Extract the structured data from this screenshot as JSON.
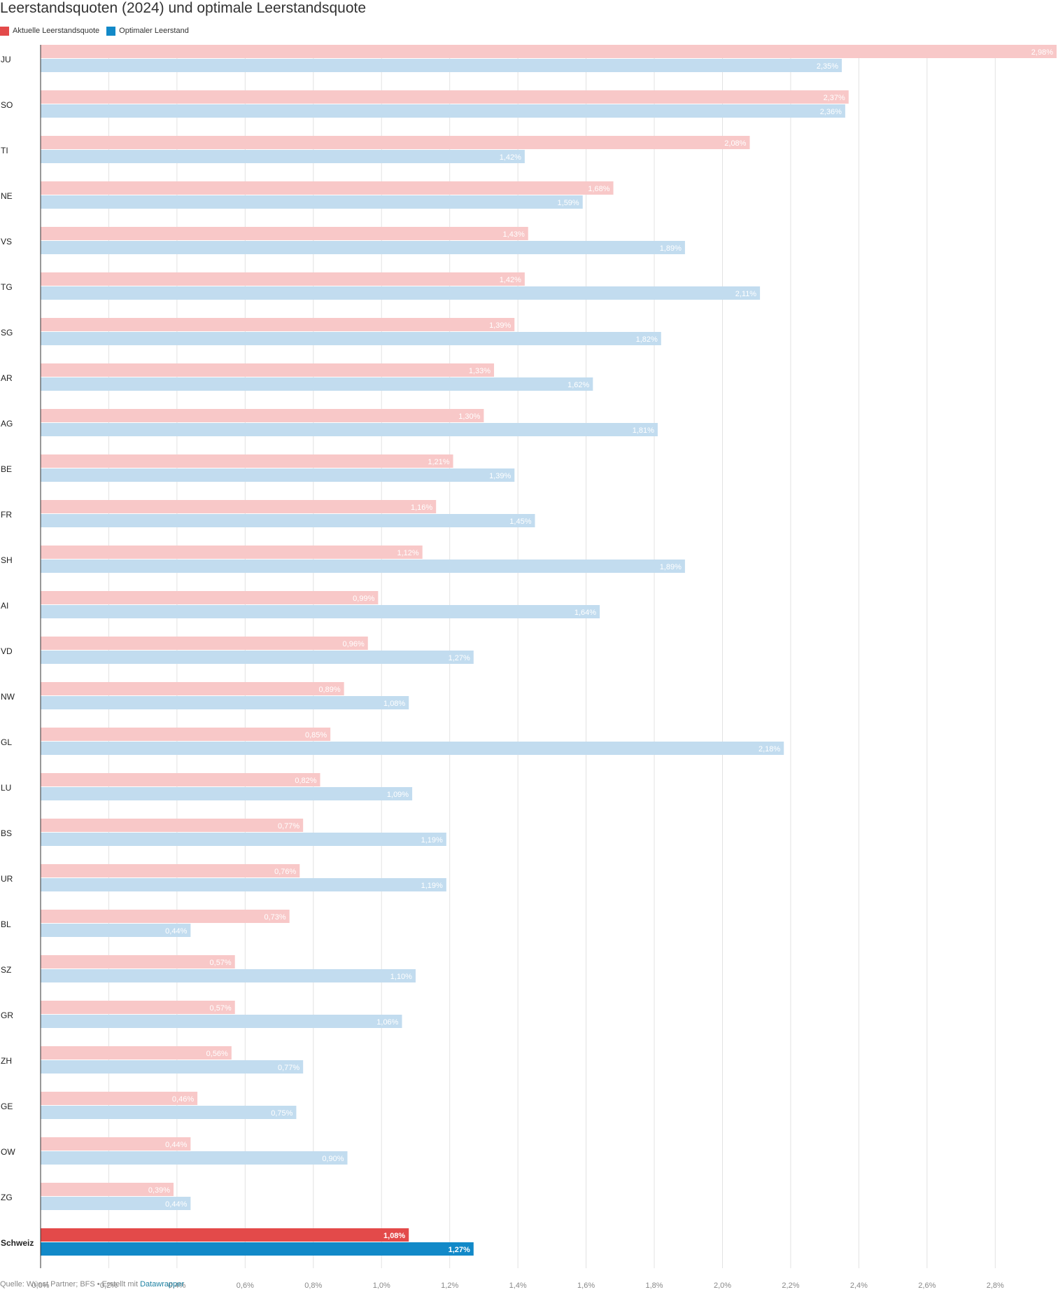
{
  "title": "Leerstandsquoten (2024) und optimale Leerstandsquote",
  "legend": [
    {
      "label": "Aktuelle Leerstandsquote",
      "color": "#e34a4a"
    },
    {
      "label": "Optimaler Leerstand",
      "color": "#1289c8"
    }
  ],
  "footer": {
    "source": "Quelle: Wüest Partner; BFS • Erstellt mit ",
    "link": "Datawrapper"
  },
  "chart_data": {
    "type": "bar",
    "orientation": "horizontal",
    "value_format": "percent, comma decimal",
    "xlim": [
      0,
      2.98
    ],
    "x_ticks": [
      "0,0%",
      "0,2%",
      "0,4%",
      "0,6%",
      "0,8%",
      "1,0%",
      "1,2%",
      "1,4%",
      "1,6%",
      "1,8%",
      "2,0%",
      "2,2%",
      "2,4%",
      "2,6%",
      "2,8%"
    ],
    "x_tick_values": [
      0,
      0.2,
      0.4,
      0.6,
      0.8,
      1.0,
      1.2,
      1.4,
      1.6,
      1.8,
      2.0,
      2.2,
      2.4,
      2.6,
      2.8
    ],
    "grid": true,
    "legend_position": "top-left",
    "highlighted_category": "Schweiz",
    "categories": [
      "JU",
      "SO",
      "TI",
      "NE",
      "VS",
      "TG",
      "SG",
      "AR",
      "AG",
      "BE",
      "FR",
      "SH",
      "AI",
      "VD",
      "NW",
      "GL",
      "LU",
      "BS",
      "UR",
      "BL",
      "SZ",
      "GR",
      "ZH",
      "GE",
      "OW",
      "ZG",
      "Schweiz"
    ],
    "series": [
      {
        "name": "Aktuelle Leerstandsquote",
        "color": "#e34a4a",
        "light_color": "#f8c8c8",
        "values": [
          2.98,
          2.37,
          2.08,
          1.68,
          1.43,
          1.42,
          1.39,
          1.33,
          1.3,
          1.21,
          1.16,
          1.12,
          0.99,
          0.96,
          0.89,
          0.85,
          0.82,
          0.77,
          0.76,
          0.73,
          0.57,
          0.57,
          0.56,
          0.46,
          0.44,
          0.39,
          1.08
        ],
        "labels": [
          "2,98%",
          "2,37%",
          "2,08%",
          "1,68%",
          "1,43%",
          "1,42%",
          "1,39%",
          "1,33%",
          "1,30%",
          "1,21%",
          "1,16%",
          "1,12%",
          "0,99%",
          "0,96%",
          "0,89%",
          "0,85%",
          "0,82%",
          "0,77%",
          "0,76%",
          "0,73%",
          "0,57%",
          "0,57%",
          "0,56%",
          "0,46%",
          "0,44%",
          "0,39%",
          "1,08%"
        ]
      },
      {
        "name": "Optimaler Leerstand",
        "color": "#1289c8",
        "light_color": "#c2dcef",
        "values": [
          2.35,
          2.36,
          1.42,
          1.59,
          1.89,
          2.11,
          1.82,
          1.62,
          1.81,
          1.39,
          1.45,
          1.89,
          1.64,
          1.27,
          1.08,
          2.18,
          1.09,
          1.19,
          1.19,
          0.44,
          1.1,
          1.06,
          0.77,
          0.75,
          0.9,
          0.44,
          1.27
        ],
        "labels": [
          "2,35%",
          "2,36%",
          "1,42%",
          "1,59%",
          "1,89%",
          "2,11%",
          "1,82%",
          "1,62%",
          "1,81%",
          "1,39%",
          "1,45%",
          "1,89%",
          "1,64%",
          "1,27%",
          "1,08%",
          "2,18%",
          "1,09%",
          "1,19%",
          "1,19%",
          "0,44%",
          "1,10%",
          "1,06%",
          "0,77%",
          "0,75%",
          "0,90%",
          "0,44%",
          "1,27%"
        ]
      }
    ]
  }
}
